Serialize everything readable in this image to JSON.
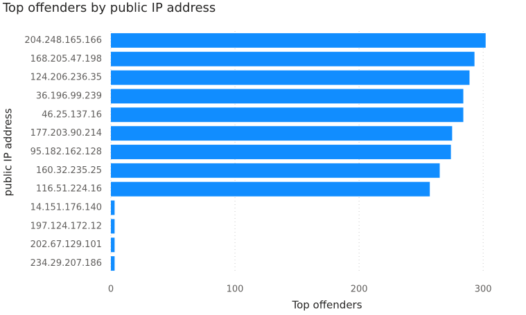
{
  "chart_data": {
    "type": "bar",
    "orientation": "horizontal",
    "title": "Top offenders by public IP address",
    "x_label": "Top offenders",
    "y_label": "public IP address",
    "categories": [
      "204.248.165.166",
      "168.205.47.198",
      "124.206.236.35",
      "36.196.99.239",
      "46.25.137.16",
      "177.203.90.214",
      "95.182.162.128",
      "160.32.235.25",
      "116.51.224.16",
      "14.151.176.140",
      "197.124.172.12",
      "202.67.129.101",
      "234.29.207.186"
    ],
    "values": [
      302,
      293,
      289,
      284,
      284,
      275,
      274,
      265,
      257,
      3,
      3,
      3,
      3
    ],
    "color": "#118dff",
    "xlim": [
      0,
      320
    ],
    "xticks": [
      0,
      100,
      200,
      300
    ],
    "grid": true
  }
}
